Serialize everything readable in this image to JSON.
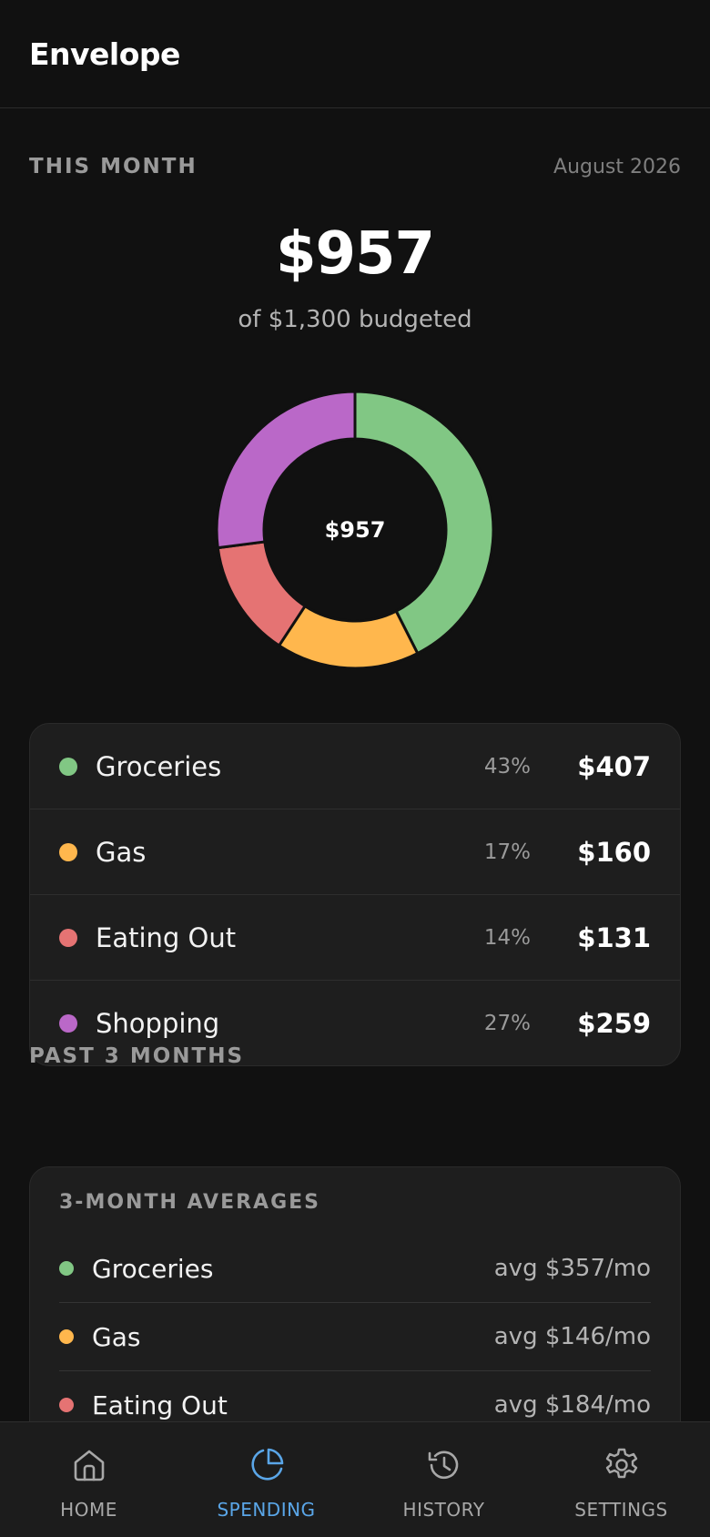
{
  "app": {
    "title": "Envelope"
  },
  "this_month": {
    "section_label": "THIS MONTH",
    "month": "August 2026",
    "total": "$957",
    "budget_text": "of $1,300 budgeted",
    "donut_center": "$957"
  },
  "chart_data": {
    "type": "pie",
    "categories": [
      "Groceries",
      "Gas",
      "Eating Out",
      "Shopping"
    ],
    "values": [
      407,
      160,
      131,
      259
    ],
    "colors": [
      "#81c784",
      "#ffb74d",
      "#e57373",
      "#ba68c8"
    ]
  },
  "categories": [
    {
      "name": "Groceries",
      "pct": "43%",
      "amount": "$407",
      "color": "#81c784"
    },
    {
      "name": "Gas",
      "pct": "17%",
      "amount": "$160",
      "color": "#ffb74d"
    },
    {
      "name": "Eating Out",
      "pct": "14%",
      "amount": "$131",
      "color": "#e57373"
    },
    {
      "name": "Shopping",
      "pct": "27%",
      "amount": "$259",
      "color": "#ba68c8"
    }
  ],
  "past": {
    "section_label": "PAST 3 MONTHS",
    "card_title": "3-MONTH AVERAGES",
    "rows": [
      {
        "name": "Groceries",
        "value": "avg $357/mo",
        "color": "#81c784"
      },
      {
        "name": "Gas",
        "value": "avg $146/mo",
        "color": "#ffb74d"
      },
      {
        "name": "Eating Out",
        "value": "avg $184/mo",
        "color": "#e57373"
      }
    ]
  },
  "tabs": [
    {
      "label": "HOME",
      "icon": "home-icon"
    },
    {
      "label": "SPENDING",
      "icon": "pie-chart-icon",
      "active": true
    },
    {
      "label": "HISTORY",
      "icon": "history-icon"
    },
    {
      "label": "SETTINGS",
      "icon": "gear-icon"
    }
  ],
  "accent_color": "#5aa6e8"
}
